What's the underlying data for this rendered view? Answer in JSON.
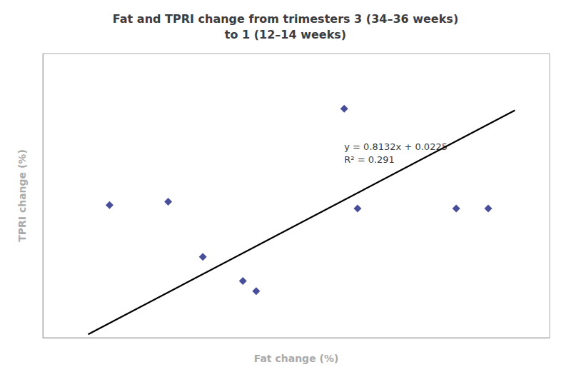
{
  "chart_data": {
    "type": "scatter",
    "title": "Fat and TPRI change from trimesters 3 (34–36 weeks)\nto 1 (12–14 weeks)",
    "xlabel": "Fat change (%)",
    "ylabel": "TPRI change (%)",
    "series": [
      {
        "type": "scatter",
        "color": "#1a237e",
        "marker": "diamond",
        "x": [
          -0.6,
          -0.38,
          -0.25,
          -0.1,
          -0.05,
          0.28,
          0.33,
          0.7,
          0.82
        ],
        "values": [
          0.22,
          0.24,
          -0.08,
          -0.22,
          -0.28,
          0.78,
          0.2,
          0.2,
          0.2
        ]
      },
      {
        "type": "line",
        "color": "black",
        "line_style": "solid",
        "x": [
          -0.68,
          0.92
        ],
        "values": [
          -0.530476,
          0.770644
        ]
      }
    ],
    "annotations": [
      {
        "text": "y = 0.8132x + 0.0225\nR² = 0.291",
        "x": 0.28,
        "y": 0.52
      }
    ],
    "xlim": [
      -0.85,
      1.05
    ],
    "ylim": [
      -0.55,
      1.1
    ],
    "grid": false,
    "tick_labels": false
  }
}
